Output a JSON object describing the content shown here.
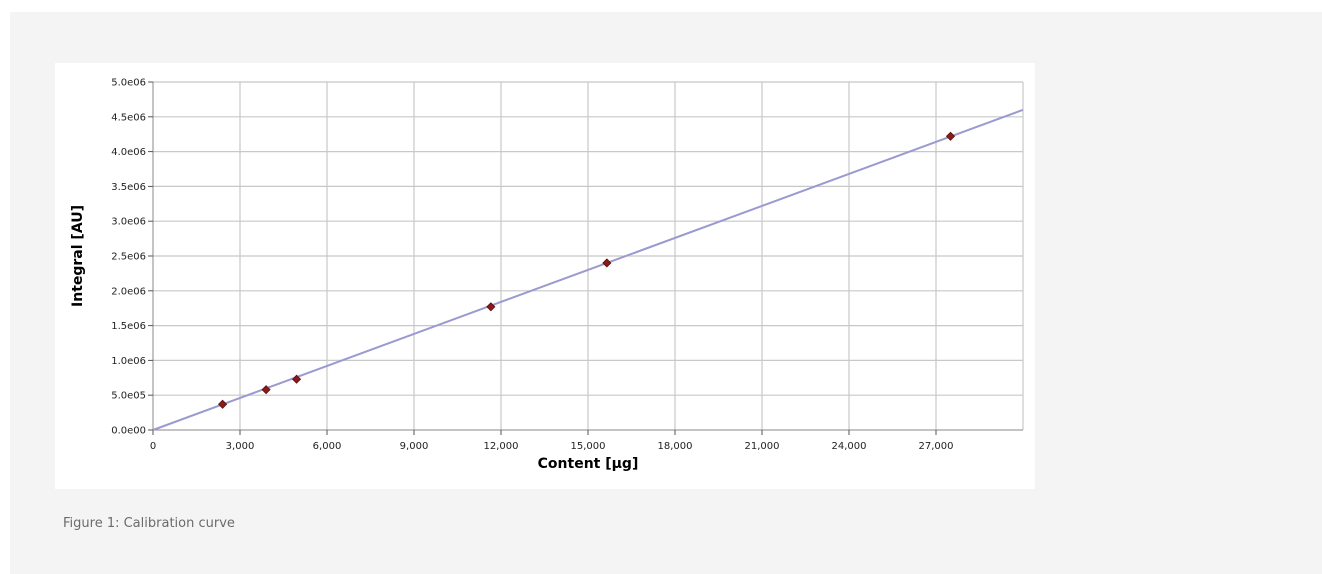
{
  "caption": "Figure 1: Calibration curve",
  "chart_data": {
    "type": "scatter",
    "xlabel": "Content [µg]",
    "ylabel": "Integral [AU]",
    "xlim": [
      0,
      30000
    ],
    "ylim": [
      0,
      5000000
    ],
    "x_ticks": [
      0,
      3000,
      6000,
      9000,
      12000,
      15000,
      18000,
      21000,
      24000,
      27000
    ],
    "x_tick_labels": [
      "0",
      "3,000",
      "6,000",
      "9,000",
      "12,000",
      "15,000",
      "18,000",
      "21,000",
      "24,000",
      "27,000"
    ],
    "y_ticks": [
      0,
      500000,
      1000000,
      1500000,
      2000000,
      2500000,
      3000000,
      3500000,
      4000000,
      4500000,
      5000000
    ],
    "y_tick_labels": [
      "0.0e00",
      "5.0e05",
      "1.0e06",
      "1.5e06",
      "2.0e06",
      "2.5e06",
      "3.0e06",
      "3.5e06",
      "4.0e06",
      "4.5e06",
      "5.0e06"
    ],
    "grid": true,
    "series": [
      {
        "points": [
          {
            "x": 2400,
            "y": 370000
          },
          {
            "x": 3900,
            "y": 580000
          },
          {
            "x": 4950,
            "y": 730000
          },
          {
            "x": 11650,
            "y": 1770000
          },
          {
            "x": 15650,
            "y": 2400000
          },
          {
            "x": 27500,
            "y": 4220000
          }
        ],
        "color": "#8b1a1a"
      }
    ],
    "fit_line": {
      "x": [
        0,
        30000
      ],
      "y": [
        0,
        4600000
      ],
      "color": "#9a9ad0"
    }
  }
}
